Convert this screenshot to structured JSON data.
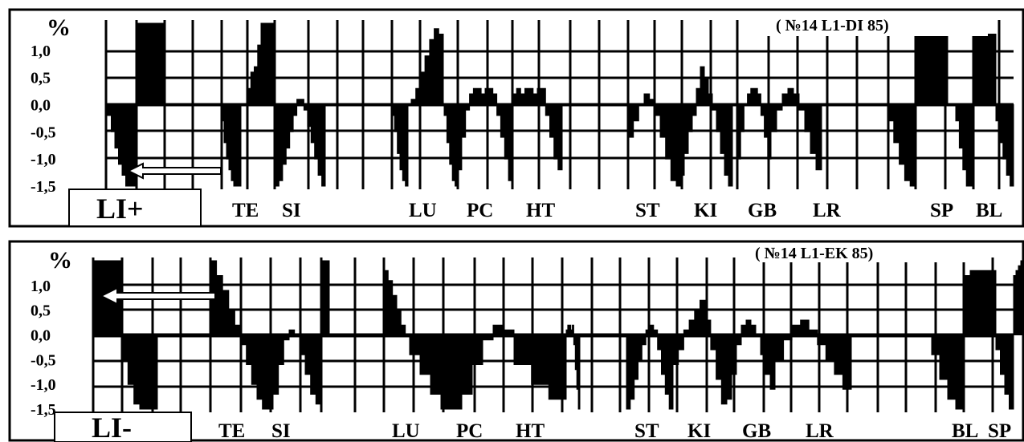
{
  "chart_data": [
    {
      "type": "area",
      "ylabel": "%",
      "yticks": [
        "1,0",
        "0,5",
        "0,0",
        "-0,5",
        "-1,0",
        "-1,5"
      ],
      "ylim": [
        -1.5,
        1.5
      ],
      "annotation": "( №14 L1-DI 85)",
      "tag": "LI+",
      "meridians": [
        "TE",
        "SI",
        "LU",
        "PC",
        "HT",
        "ST",
        "KI",
        "GB",
        "LR",
        "SP",
        "BL"
      ],
      "segments": [
        {
          "values": [
            -0.2,
            -0.5,
            -0.8,
            -1.1,
            -1.3,
            -1.5,
            -1.5,
            -1.5
          ]
        },
        {
          "values": [
            1.5,
            1.5,
            1.5,
            1.5,
            1.5,
            1.5,
            1.5,
            1.5
          ]
        },
        {
          "values": [
            -0.3,
            -0.7,
            -1.0,
            -1.2,
            -1.4,
            -1.5,
            -1.5,
            -1.5
          ]
        },
        {
          "values": [
            0.3,
            0.6,
            0.7,
            1.1,
            1.5,
            1.5,
            1.5,
            1.5
          ]
        },
        {
          "values": [
            -1.5,
            -1.4,
            -1.1,
            -0.8,
            -0.5,
            -0.2,
            0.1,
            0.1,
            -0.1,
            -0.4,
            -0.7,
            -1.0,
            -1.3,
            -1.5
          ]
        },
        {
          "values": [
            -0.2,
            -0.5,
            -0.9,
            -1.2,
            -1.4,
            -1.5
          ]
        },
        {
          "values": [
            0.1,
            0.3,
            0.6,
            0.9,
            1.2,
            1.4,
            1.3
          ]
        },
        {
          "values": [
            -0.2,
            -0.7,
            -1.1,
            -1.4,
            -1.5
          ]
        },
        {
          "values": [
            -1.2,
            -0.6,
            -0.1,
            0.2,
            0.3,
            0.3,
            0.2,
            0.3,
            0.3,
            0.2,
            -0.2,
            -0.6,
            -1.0,
            -1.4
          ]
        },
        {
          "values": [
            0.2,
            0.3,
            0.2,
            0.3,
            0.3,
            0.2,
            0.3,
            0.3,
            -0.2,
            -0.6,
            -1.0,
            -1.2
          ]
        },
        {
          "values": [
            -0.6,
            -0.3,
            0.0,
            0.2,
            0.1,
            -0.2,
            -0.6,
            -1.0,
            -1.4
          ]
        },
        {
          "values": [
            -1.5,
            -1.3,
            -0.9,
            -0.5,
            -0.2,
            0.3,
            0.7,
            0.5,
            0.2,
            -0.1,
            -0.5,
            -0.9,
            -1.3,
            -1.5
          ]
        },
        {
          "values": [
            -1.0,
            -0.5,
            0.0,
            0.2,
            0.3,
            0.3,
            0.2,
            -0.2,
            -0.6,
            -1.0
          ]
        },
        {
          "values": [
            -0.5,
            -0.1,
            0.2,
            0.3,
            0.2,
            -0.1,
            -0.5,
            -0.9,
            -1.2
          ]
        },
        {
          "values": [
            -0.3,
            -0.7,
            -1.1,
            -1.4,
            -1.5
          ]
        },
        {
          "values": [
            1.3,
            1.3,
            1.3,
            1.3,
            1.3
          ]
        },
        {
          "values": [
            -0.3,
            -0.8,
            -1.2,
            -1.5,
            -1.5
          ]
        },
        {
          "values": [
            1.3,
            1.3,
            1.3,
            1.3,
            1.3
          ]
        },
        {
          "values": [
            -0.3,
            -0.7,
            -1.0,
            -1.3,
            -1.5
          ]
        }
      ]
    },
    {
      "type": "area",
      "ylabel": "%",
      "yticks": [
        "1,0",
        "0,5",
        "0,0",
        "-0,5",
        "-1,0",
        "-1,5"
      ],
      "ylim": [
        -1.5,
        1.5
      ],
      "annotation": "( №14 L1-EK 85)",
      "tag": "LI-",
      "meridians": [
        "TE",
        "SI",
        "LU",
        "PC",
        "HT",
        "ST",
        "KI",
        "GB",
        "LR",
        "BL",
        "SP"
      ],
      "segments": [
        {
          "values": [
            1.5,
            1.5,
            1.5,
            1.5,
            1.5,
            1.5
          ]
        },
        {
          "values": [
            -0.5,
            -1.0,
            -1.4,
            -1.5,
            -1.5,
            -1.5
          ]
        },
        {
          "values": [
            1.5,
            1.2,
            0.9,
            0.5,
            0.2
          ]
        },
        {
          "values": [
            -0.2,
            -0.6,
            -1.0,
            -1.3,
            -1.5,
            -1.5,
            -1.2,
            -0.6,
            -0.1,
            0.1,
            0.0,
            -0.4,
            -0.8,
            -1.2,
            -1.4
          ]
        },
        {
          "values": [
            1.5,
            1.5,
            1.5,
            1.5
          ]
        },
        {
          "values": [
            1.3,
            1.1,
            0.8,
            0.5,
            0.2,
            0.0
          ]
        },
        {
          "values": [
            -0.4,
            -0.8,
            -1.2,
            -1.5,
            -1.5,
            -1.2,
            -0.6,
            -0.1,
            0.2,
            0.1
          ]
        },
        {
          "values": [
            -0.6,
            -1.0,
            -1.3
          ]
        },
        {
          "values": [
            0.1,
            0.2,
            0.2,
            0.1,
            0.2,
            -0.2,
            -0.7,
            -1.1,
            -1.5
          ]
        },
        {
          "values": [
            -1.5,
            -1.3,
            -0.9,
            -0.5,
            -0.2,
            0.1,
            0.2,
            0.1,
            -0.3,
            -0.8,
            -1.2,
            -1.5
          ]
        },
        {
          "values": [
            -0.6,
            -0.3,
            0.1,
            0.3,
            0.5,
            0.7,
            0.3,
            -0.3,
            -0.9,
            -1.4
          ]
        },
        {
          "values": [
            -1.3,
            -0.8,
            -0.2,
            0.2,
            0.3,
            0.2,
            0.0,
            -0.4,
            -0.8,
            -1.1
          ]
        },
        {
          "values": [
            -0.5,
            -0.1,
            0.2,
            0.3,
            0.1,
            -0.2,
            -0.5,
            -0.8,
            -1.1
          ]
        },
        {
          "values": [
            -0.4,
            -0.9,
            -1.3,
            -1.5
          ]
        },
        {
          "values": [
            1.2,
            1.3,
            1.3,
            1.3,
            1.3
          ]
        },
        {
          "values": [
            -0.3,
            -0.8,
            -1.2,
            -1.5
          ]
        },
        {
          "values": [
            1.2,
            1.3,
            1.4,
            1.5
          ]
        }
      ]
    }
  ]
}
